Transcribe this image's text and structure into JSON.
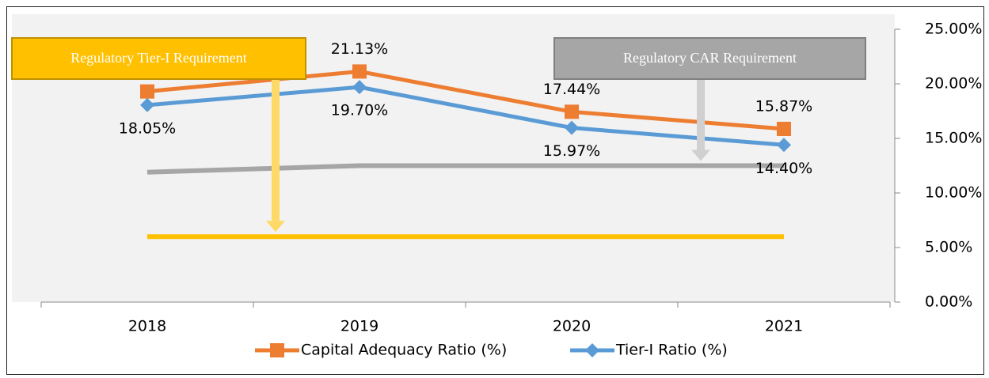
{
  "chart_data": {
    "type": "line",
    "categories": [
      "2018",
      "2019",
      "2020",
      "2021"
    ],
    "series": [
      {
        "name": "Capital Adequacy Ratio (%)",
        "color": "#ed7d31",
        "marker": "square",
        "values": [
          19.3,
          21.13,
          17.44,
          15.87
        ],
        "value_labels": [
          null,
          "21.13%",
          "17.44%",
          "15.87%"
        ]
      },
      {
        "name": "Tier-I Ratio (%)",
        "color": "#5b9bd5",
        "marker": "diamond",
        "values": [
          18.05,
          19.7,
          15.97,
          14.4
        ],
        "value_labels": [
          "18.05%",
          "19.70%",
          "15.97%",
          "14.40%"
        ]
      }
    ],
    "reference_lines": [
      {
        "name": "Regulatory Tier-I Requirement",
        "color": "#ffc000",
        "values": [
          6,
          6,
          6,
          6
        ]
      },
      {
        "name": "Regulatory CAR Requirement",
        "color": "#a6a6a6",
        "values": [
          11.9,
          12.5,
          12.5,
          12.5
        ]
      }
    ],
    "ylim": [
      0,
      25
    ],
    "yticks": [
      {
        "value": 0,
        "label": "0.00%"
      },
      {
        "value": 5,
        "label": "5.00%"
      },
      {
        "value": 10,
        "label": "10.00%"
      },
      {
        "value": 15,
        "label": "15.00%"
      },
      {
        "value": 20,
        "label": "20.00%"
      },
      {
        "value": 25,
        "label": "25.00%"
      }
    ],
    "y_axis_side": "right",
    "legend": "bottom"
  }
}
